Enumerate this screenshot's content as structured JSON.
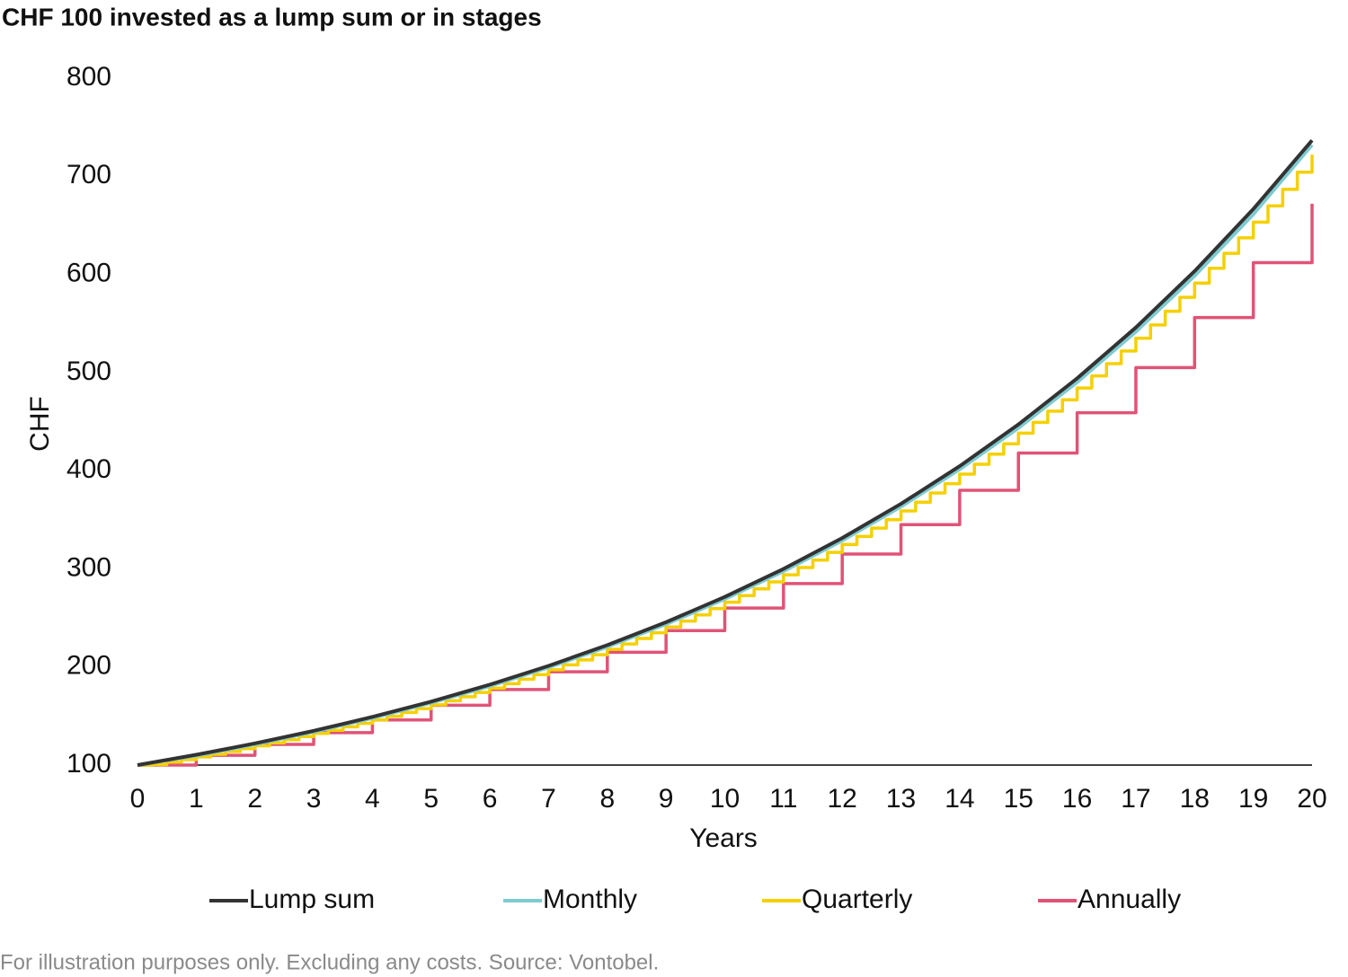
{
  "chart_data": {
    "type": "line",
    "title": "CHF 100 invested as a lump sum or in stages",
    "x_label": "Years",
    "y_label": "CHF",
    "note": "For illustration purposes only. Excluding any costs. Source: Vontobel.",
    "xlim": [
      0,
      20
    ],
    "xticks": [
      0,
      1,
      2,
      3,
      4,
      5,
      6,
      7,
      8,
      9,
      10,
      11,
      12,
      13,
      14,
      15,
      16,
      17,
      18,
      19,
      20
    ],
    "ylim": [
      100,
      800
    ],
    "yticks": [
      100,
      200,
      300,
      400,
      500,
      600,
      700,
      800
    ],
    "grid": false,
    "legend": "bottom",
    "series": [
      {
        "name": "Lump sum",
        "color": "#333333",
        "x": [
          0,
          1,
          2,
          3,
          4,
          5,
          6,
          7,
          8,
          9,
          10,
          11,
          12,
          13,
          14,
          15,
          16,
          17,
          18,
          19,
          20
        ],
        "values": [
          100,
          110.5,
          122.1,
          134.9,
          149.1,
          164.7,
          182.0,
          201.1,
          222.3,
          245.6,
          271.4,
          299.9,
          331.4,
          366.2,
          404.6,
          447.1,
          494.1,
          545.9,
          603.3,
          666.6,
          736.6
        ]
      },
      {
        "name": "Monthly",
        "color": "#7ecbd0",
        "x": [
          0,
          1,
          2,
          3,
          4,
          5,
          6,
          7,
          8,
          9,
          10,
          11,
          12,
          13,
          14,
          15,
          16,
          17,
          18,
          19,
          20
        ],
        "values": [
          100,
          109.6,
          121.1,
          133.8,
          147.9,
          163.4,
          180.5,
          199.5,
          220.5,
          243.6,
          269.2,
          297.5,
          328.8,
          363.3,
          401.4,
          443.5,
          490.2,
          541.6,
          598.5,
          661.3,
          732
        ]
      },
      {
        "name": "Quarterly",
        "color": "#f5d000",
        "drawstyle": "steps-post",
        "x": [
          0,
          0.25,
          0.5,
          0.75,
          1,
          1.25,
          1.5,
          1.75,
          2,
          2.25,
          2.5,
          2.75,
          3,
          3.25,
          3.5,
          3.75,
          4,
          4.25,
          4.5,
          4.75,
          5,
          5.25,
          5.5,
          5.75,
          6,
          6.25,
          6.5,
          6.75,
          7,
          7.25,
          7.5,
          7.75,
          8,
          8.25,
          8.5,
          8.75,
          9,
          9.25,
          9.5,
          9.75,
          10,
          10.25,
          10.5,
          10.75,
          11,
          11.25,
          11.5,
          11.75,
          12,
          12.25,
          12.5,
          12.75,
          13,
          13.25,
          13.5,
          13.75,
          14,
          14.25,
          14.5,
          14.75,
          15,
          15.25,
          15.5,
          15.75,
          16,
          16.25,
          16.5,
          16.75,
          17,
          17.25,
          17.5,
          17.75,
          18,
          18.25,
          18.5,
          18.75,
          19,
          19.25,
          19.5,
          19.75,
          20
        ],
        "values": [
          100,
          100.5,
          103.0,
          105.6,
          108.3,
          111.0,
          113.8,
          116.7,
          119.7,
          122.7,
          125.8,
          129.0,
          132.2,
          135.5,
          139.0,
          142.5,
          146.1,
          149.8,
          153.6,
          157.5,
          161.4,
          165.5,
          169.7,
          174.0,
          178.4,
          182.9,
          187.5,
          192.2,
          197.1,
          202.1,
          207.2,
          212.4,
          217.9,
          223.4,
          229.0,
          234.8,
          240.7,
          246.8,
          253.0,
          259.4,
          266.0,
          272.7,
          279.6,
          286.7,
          293.9,
          301.3,
          308.9,
          316.8,
          324.8,
          333.0,
          341.4,
          350.0,
          358.9,
          367.9,
          377.3,
          386.8,
          396.5,
          406.5,
          416.8,
          427.3,
          438.2,
          449.2,
          460.6,
          472.2,
          484.2,
          496.5,
          509.0,
          521.9,
          535.0,
          548.5,
          562.4,
          576.6,
          591.2,
          606.2,
          621.5,
          637.2,
          653.3,
          669.8,
          686.7,
          704.1,
          722
        ]
      },
      {
        "name": "Annually",
        "color": "#e05377",
        "drawstyle": "steps-post",
        "x": [
          0,
          1,
          2,
          3,
          4,
          5,
          6,
          7,
          8,
          9,
          10,
          11,
          12,
          13,
          14,
          15,
          16,
          17,
          18,
          19,
          20
        ],
        "values": [
          100,
          110,
          121,
          133,
          146,
          161,
          177,
          195,
          215,
          237,
          260,
          285,
          315,
          345,
          380,
          418,
          459,
          505,
          556,
          612,
          672
        ]
      }
    ]
  }
}
